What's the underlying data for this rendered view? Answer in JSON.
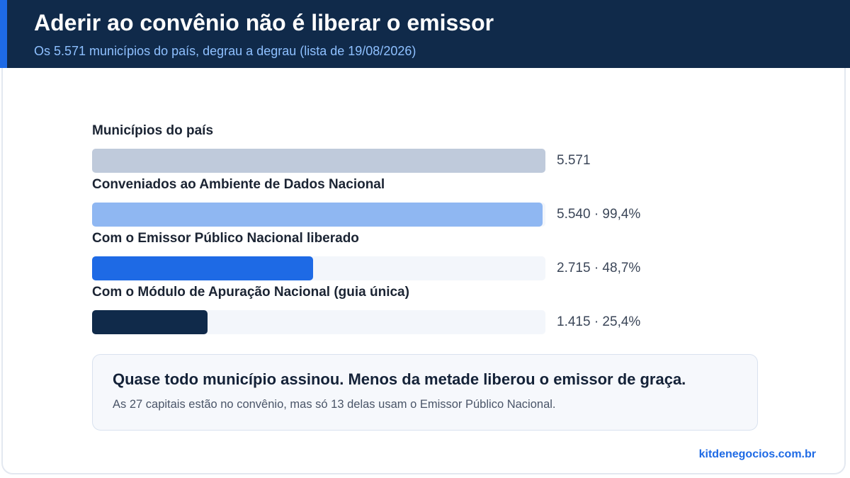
{
  "header": {
    "title": "Aderir ao convênio não é liberar o emissor",
    "subtitle": "Os 5.571 municípios do país, degrau a degrau (lista de 19/08/2026)"
  },
  "chart_data": {
    "type": "bar",
    "orientation": "horizontal",
    "title": "Aderir ao convênio não é liberar o emissor",
    "subtitle": "Os 5.571 municípios do país, degrau a degrau (lista de 19/08/2026)",
    "categories": [
      "Municípios do país",
      "Conveniados ao Ambiente de Dados Nacional",
      "Com o Emissor Público Nacional liberado",
      "Com o Módulo de Apuração Nacional (guia única)"
    ],
    "values": [
      5571,
      5540,
      2715,
      1415
    ],
    "value_labels": [
      "5.571",
      "5.540 · 99,4%",
      "2.715 · 48,7%",
      "1.415 · 25,4%"
    ],
    "colors": [
      "#bfcadb",
      "#8fb7f2",
      "#1e6ae5",
      "#102a4a"
    ],
    "xlim": [
      0,
      5571
    ],
    "grid": false
  },
  "callout": {
    "title": "Quase todo município assinou. Menos da metade liberou o emissor de graça.",
    "text": "As 27 capitais estão no convênio, mas só 13 delas usam o Emissor Público Nacional."
  },
  "footer": {
    "link": "kitdenegocios.com.br"
  }
}
